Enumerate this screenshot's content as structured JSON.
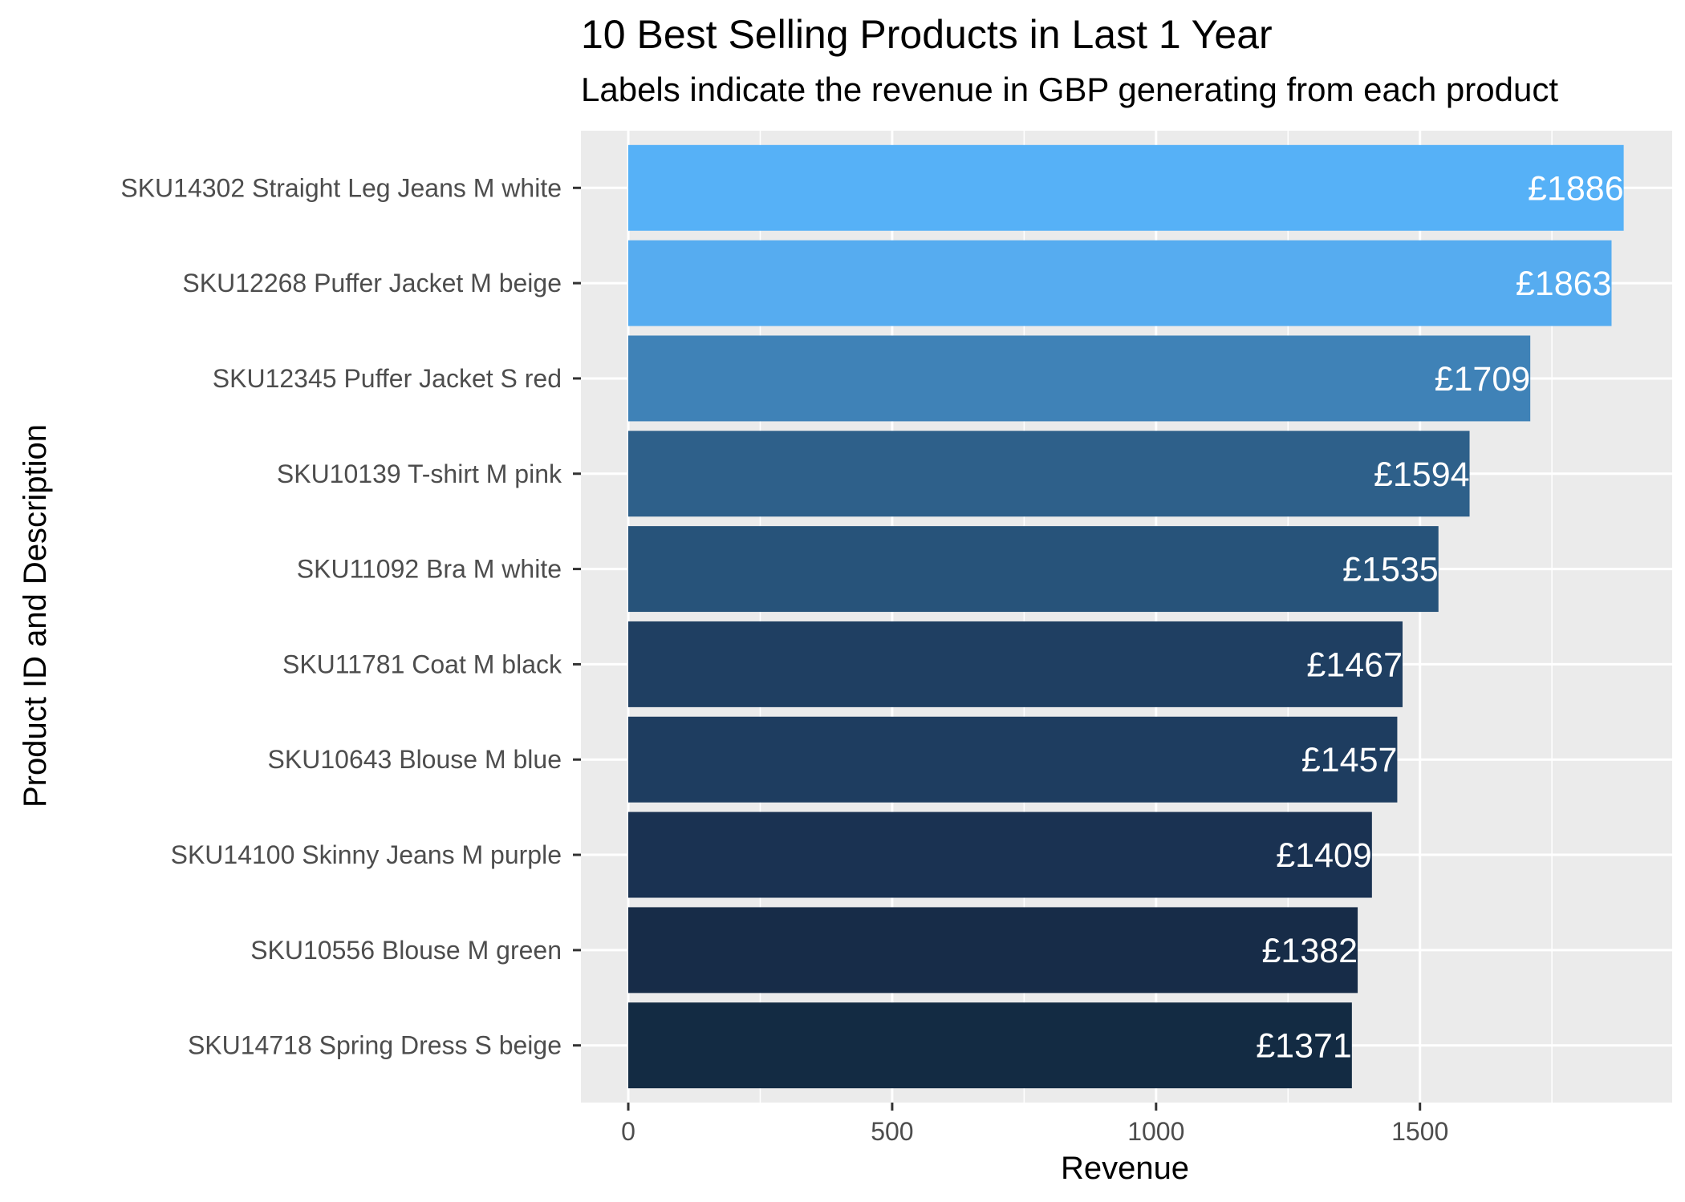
{
  "chart_data": {
    "type": "bar",
    "orientation": "horizontal",
    "title": "10 Best Selling Products in Last 1 Year",
    "subtitle": "Labels indicate the revenue in GBP generating from each product",
    "xlabel": "Revenue",
    "ylabel": "Product ID and Description",
    "xlim": [
      -62,
      1960
    ],
    "xticks": [
      0,
      500,
      1000,
      1500
    ],
    "grid": true,
    "legend": "none",
    "value_prefix": "£",
    "categories": [
      "SKU14302 Straight Leg Jeans M white",
      "SKU12268 Puffer Jacket M beige",
      "SKU12345 Puffer Jacket S red",
      "SKU10139 T-shirt M pink",
      "SKU11092 Bra M white",
      "SKU11781 Coat M black",
      "SKU10643 Blouse M blue",
      "SKU14100 Skinny Jeans M purple",
      "SKU10556 Blouse M green",
      "SKU14718 Spring Dress S beige"
    ],
    "values": [
      1886,
      1863,
      1709,
      1594,
      1535,
      1467,
      1457,
      1409,
      1382,
      1371
    ],
    "labels": [
      "£1886",
      "£1863",
      "£1709",
      "£1594",
      "£1535",
      "£1467",
      "£1457",
      "£1409",
      "£1382",
      "£1371"
    ],
    "colors": [
      "#56B1F7",
      "#56ACF0",
      "#3F82B7",
      "#2E608A",
      "#27537A",
      "#1F3F62",
      "#1E3D60",
      "#1A3252",
      "#172C48",
      "#132B43"
    ]
  }
}
